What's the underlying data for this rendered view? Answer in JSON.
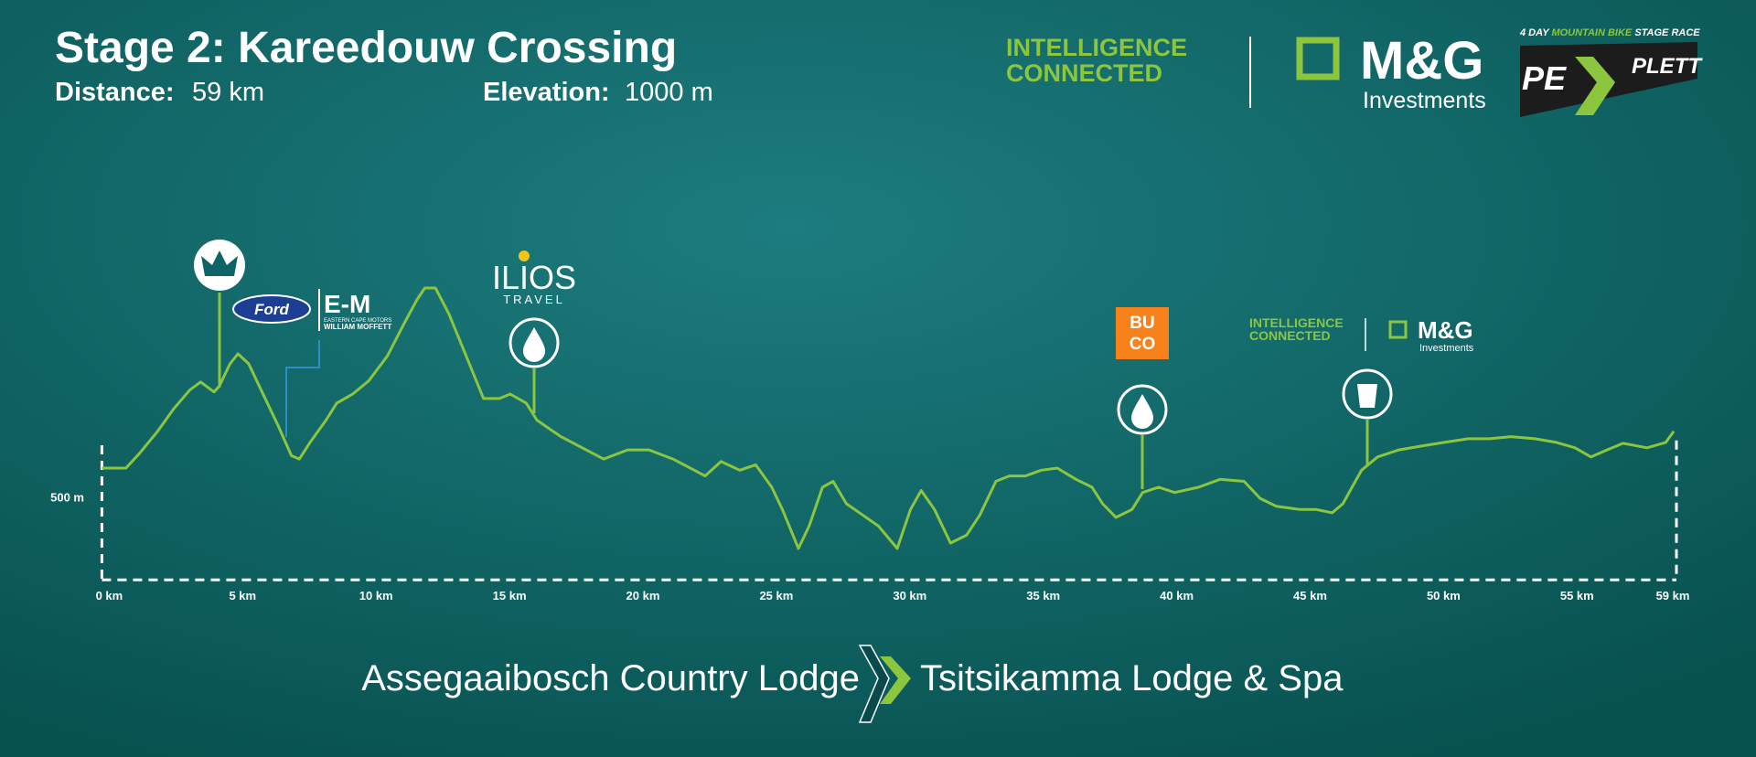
{
  "header": {
    "title": "Stage 2: Kareedouw Crossing",
    "distance_label": "Distance:",
    "distance": "59 km",
    "elevation_label": "Elevation:",
    "elevation": "1000 m"
  },
  "sponsors": {
    "tagline_1": "INTELLIGENCE",
    "tagline_2": "CONNECTED",
    "mg": "M&G",
    "investments": "Investments",
    "race_1": "4 DAY",
    "race_2": "MOUNTAIN BIKE",
    "race_3": "STAGE RACE",
    "pe": "PE",
    "plett": "PLETT",
    "ilios": "ILIOS",
    "travel": "TRAVEL",
    "buco_1": "BU",
    "buco_2": "CO",
    "ford": "Ford",
    "ecm": "E-M",
    "ecm_1": "EASTERN CAPE MOTORS",
    "ecm_2": "WILLIAM MOFFETT"
  },
  "route": {
    "start": "Assegaaibosch Country Lodge",
    "end": "Tsitsikamma Lodge & Spa"
  },
  "chart_data": {
    "type": "line",
    "color": "#8cc63f",
    "x": [
      0,
      0.4,
      0.9,
      1.4,
      2.1,
      2.7,
      3.3,
      3.7,
      4.2,
      4.4,
      4.8,
      5.1,
      5.5,
      6.0,
      6.6,
      7.1,
      7.4,
      7.8,
      8.4,
      8.8,
      9.4,
      10.0,
      10.7,
      11.3,
      11.8,
      12.1,
      12.5,
      13.0,
      13.6,
      14.3,
      14.9,
      15.3,
      15.9,
      16.3,
      17.2,
      18.0,
      18.8,
      19.7,
      20.5,
      21.4,
      22.2,
      22.6,
      23.2,
      23.9,
      24.5,
      25.1,
      25.5,
      26.1,
      26.5,
      27.0,
      27.4,
      27.9,
      28.5,
      29.1,
      29.8,
      30.3,
      30.7,
      31.2,
      31.8,
      32.4,
      32.9,
      33.5,
      34.0,
      34.6,
      35.2,
      35.8,
      36.5,
      37.1,
      37.5,
      38.0,
      38.6,
      39.0,
      39.6,
      40.2,
      41.1,
      41.9,
      42.8,
      43.4,
      44.0,
      44.9,
      45.5,
      46.1,
      46.5,
      47.2,
      47.8,
      48.6,
      49.5,
      50.3,
      51.2,
      52.0,
      52.8,
      53.7,
      54.5,
      55.2,
      55.8,
      56.4,
      57.0,
      57.9,
      58.6,
      58.9
    ],
    "values": [
      570,
      570,
      570,
      605,
      660,
      714,
      759,
      778,
      754,
      768,
      822,
      846,
      822,
      754,
      673,
      600,
      592,
      632,
      686,
      727,
      749,
      781,
      841,
      916,
      976,
      1005,
      1005,
      943,
      849,
      738,
      738,
      749,
      727,
      686,
      646,
      619,
      592,
      614,
      614,
      592,
      565,
      551,
      586,
      565,
      578,
      524,
      470,
      376,
      430,
      524,
      538,
      484,
      457,
      430,
      376,
      470,
      516,
      470,
      389,
      408,
      457,
      538,
      551,
      551,
      565,
      570,
      543,
      524,
      484,
      451,
      470,
      511,
      524,
      511,
      524,
      543,
      538,
      497,
      478,
      470,
      470,
      462,
      484,
      565,
      597,
      614,
      624,
      632,
      641,
      641,
      646,
      641,
      632,
      619,
      597,
      614,
      630,
      619,
      632,
      659
    ],
    "xlim": [
      0,
      59
    ],
    "ylim": [
      300,
      1100
    ],
    "xticks": [
      {
        "value": 0,
        "label": "0 km"
      },
      {
        "value": 5,
        "label": "5 km"
      },
      {
        "value": 10,
        "label": "10 km"
      },
      {
        "value": 15,
        "label": "15 km"
      },
      {
        "value": 20,
        "label": "20 km"
      },
      {
        "value": 25,
        "label": "25 km"
      },
      {
        "value": 30,
        "label": "30 km"
      },
      {
        "value": 35,
        "label": "35 km"
      },
      {
        "value": 40,
        "label": "40 km"
      },
      {
        "value": 45,
        "label": "45 km"
      },
      {
        "value": 50,
        "label": "50 km"
      },
      {
        "value": 55,
        "label": "55 km"
      },
      {
        "value": 59,
        "label": "59 km"
      }
    ],
    "yticks": [
      {
        "value": 500,
        "label": "500 m"
      }
    ]
  }
}
